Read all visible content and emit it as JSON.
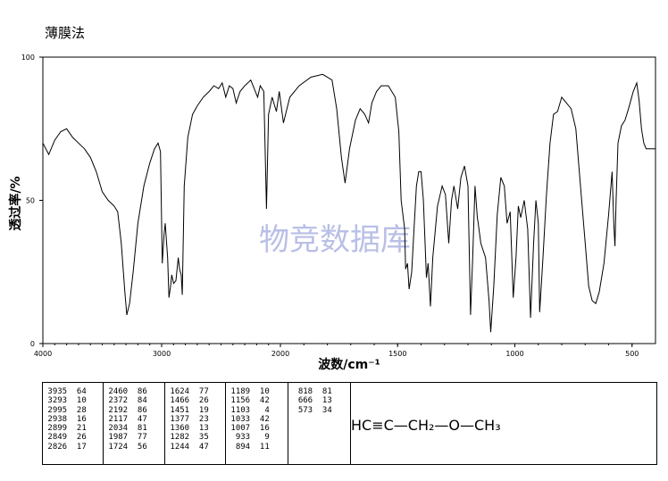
{
  "title": "薄膜法",
  "chart_data": {
    "type": "line",
    "xlabel": "波数/cm⁻¹",
    "ylabel": "透过率/%",
    "xlim": [
      4000,
      400
    ],
    "ylim": [
      0,
      100
    ],
    "x_ticks": [
      "4000",
      "3000",
      "2000",
      "1500",
      "1000",
      "500"
    ],
    "y_ticks": [
      "0",
      "50",
      "100"
    ],
    "watermark": "物竞数据库",
    "series": [
      {
        "points": [
          [
            4000,
            70
          ],
          [
            3950,
            66
          ],
          [
            3900,
            71
          ],
          [
            3850,
            74
          ],
          [
            3800,
            75
          ],
          [
            3750,
            72
          ],
          [
            3700,
            70
          ],
          [
            3650,
            68
          ],
          [
            3600,
            65
          ],
          [
            3550,
            60
          ],
          [
            3500,
            53
          ],
          [
            3450,
            50
          ],
          [
            3400,
            48
          ],
          [
            3370,
            46
          ],
          [
            3340,
            35
          ],
          [
            3310,
            18
          ],
          [
            3293,
            10
          ],
          [
            3270,
            14
          ],
          [
            3240,
            25
          ],
          [
            3200,
            42
          ],
          [
            3150,
            55
          ],
          [
            3100,
            63
          ],
          [
            3060,
            68
          ],
          [
            3030,
            70
          ],
          [
            3010,
            67
          ],
          [
            2995,
            28
          ],
          [
            2980,
            38
          ],
          [
            2970,
            42
          ],
          [
            2950,
            30
          ],
          [
            2938,
            16
          ],
          [
            2925,
            20
          ],
          [
            2915,
            24
          ],
          [
            2899,
            21
          ],
          [
            2880,
            22
          ],
          [
            2860,
            30
          ],
          [
            2849,
            26
          ],
          [
            2835,
            24
          ],
          [
            2826,
            17
          ],
          [
            2810,
            55
          ],
          [
            2780,
            72
          ],
          [
            2740,
            80
          ],
          [
            2700,
            83
          ],
          [
            2650,
            86
          ],
          [
            2600,
            88
          ],
          [
            2560,
            90
          ],
          [
            2520,
            89
          ],
          [
            2490,
            91
          ],
          [
            2460,
            86
          ],
          [
            2430,
            90
          ],
          [
            2400,
            89
          ],
          [
            2372,
            84
          ],
          [
            2340,
            88
          ],
          [
            2300,
            90
          ],
          [
            2250,
            92
          ],
          [
            2192,
            86
          ],
          [
            2170,
            90
          ],
          [
            2140,
            88
          ],
          [
            2117,
            47
          ],
          [
            2100,
            80
          ],
          [
            2070,
            86
          ],
          [
            2034,
            81
          ],
          [
            2010,
            88
          ],
          [
            1987,
            77
          ],
          [
            1960,
            86
          ],
          [
            1920,
            90
          ],
          [
            1870,
            93
          ],
          [
            1820,
            94
          ],
          [
            1780,
            92
          ],
          [
            1760,
            82
          ],
          [
            1740,
            65
          ],
          [
            1724,
            56
          ],
          [
            1705,
            68
          ],
          [
            1680,
            78
          ],
          [
            1660,
            82
          ],
          [
            1640,
            80
          ],
          [
            1624,
            77
          ],
          [
            1610,
            84
          ],
          [
            1590,
            88
          ],
          [
            1570,
            90
          ],
          [
            1540,
            90
          ],
          [
            1510,
            86
          ],
          [
            1495,
            74
          ],
          [
            1485,
            50
          ],
          [
            1470,
            40
          ],
          [
            1466,
            26
          ],
          [
            1458,
            28
          ],
          [
            1451,
            19
          ],
          [
            1440,
            25
          ],
          [
            1430,
            40
          ],
          [
            1420,
            55
          ],
          [
            1410,
            60
          ],
          [
            1400,
            60
          ],
          [
            1390,
            50
          ],
          [
            1377,
            23
          ],
          [
            1370,
            28
          ],
          [
            1360,
            13
          ],
          [
            1350,
            30
          ],
          [
            1330,
            48
          ],
          [
            1310,
            55
          ],
          [
            1296,
            52
          ],
          [
            1282,
            35
          ],
          [
            1270,
            50
          ],
          [
            1260,
            55
          ],
          [
            1244,
            47
          ],
          [
            1230,
            58
          ],
          [
            1215,
            62
          ],
          [
            1200,
            55
          ],
          [
            1189,
            10
          ],
          [
            1180,
            30
          ],
          [
            1170,
            55
          ],
          [
            1160,
            44
          ],
          [
            1156,
            42
          ],
          [
            1145,
            35
          ],
          [
            1125,
            30
          ],
          [
            1110,
            15
          ],
          [
            1103,
            4
          ],
          [
            1090,
            20
          ],
          [
            1075,
            45
          ],
          [
            1060,
            58
          ],
          [
            1045,
            55
          ],
          [
            1033,
            42
          ],
          [
            1020,
            46
          ],
          [
            1007,
            16
          ],
          [
            995,
            30
          ],
          [
            985,
            48
          ],
          [
            975,
            44
          ],
          [
            960,
            50
          ],
          [
            945,
            40
          ],
          [
            933,
            9
          ],
          [
            920,
            35
          ],
          [
            910,
            50
          ],
          [
            900,
            42
          ],
          [
            894,
            11
          ],
          [
            880,
            30
          ],
          [
            865,
            52
          ],
          [
            850,
            70
          ],
          [
            835,
            80
          ],
          [
            818,
            81
          ],
          [
            800,
            86
          ],
          [
            780,
            84
          ],
          [
            760,
            82
          ],
          [
            740,
            75
          ],
          [
            720,
            55
          ],
          [
            700,
            35
          ],
          [
            685,
            20
          ],
          [
            670,
            15
          ],
          [
            655,
            14
          ],
          [
            640,
            18
          ],
          [
            620,
            28
          ],
          [
            600,
            45
          ],
          [
            585,
            60
          ],
          [
            578,
            42
          ],
          [
            573,
            34
          ],
          [
            568,
            50
          ],
          [
            560,
            70
          ],
          [
            545,
            76
          ],
          [
            530,
            78
          ],
          [
            515,
            82
          ],
          [
            495,
            88
          ],
          [
            480,
            91
          ],
          [
            470,
            85
          ],
          [
            460,
            75
          ],
          [
            450,
            70
          ],
          [
            440,
            68
          ],
          [
            420,
            68
          ],
          [
            400,
            68
          ]
        ]
      }
    ],
    "peak_table": [
      [
        [
          "3935",
          "64"
        ],
        [
          "3293",
          "10"
        ],
        [
          "2995",
          "28"
        ],
        [
          "2938",
          "16"
        ],
        [
          "2899",
          "21"
        ],
        [
          "2849",
          "26"
        ],
        [
          "2826",
          "17"
        ]
      ],
      [
        [
          "2460",
          "86"
        ],
        [
          "2372",
          "84"
        ],
        [
          "2192",
          "86"
        ],
        [
          "2117",
          "47"
        ],
        [
          "2034",
          "81"
        ],
        [
          "1987",
          "77"
        ],
        [
          "1724",
          "56"
        ]
      ],
      [
        [
          "1624",
          "77"
        ],
        [
          "1466",
          "26"
        ],
        [
          "1451",
          "19"
        ],
        [
          "1377",
          "23"
        ],
        [
          "1360",
          "13"
        ],
        [
          "1282",
          "35"
        ],
        [
          "1244",
          "47"
        ]
      ],
      [
        [
          "1189",
          "10"
        ],
        [
          "1156",
          "42"
        ],
        [
          "1103",
          "4"
        ],
        [
          "1033",
          "42"
        ],
        [
          "1007",
          "16"
        ],
        [
          "933",
          "9"
        ],
        [
          "894",
          "11"
        ]
      ],
      [
        [
          "818",
          "81"
        ],
        [
          "666",
          "13"
        ],
        [
          "573",
          "34"
        ]
      ]
    ],
    "structure": "HC≡C—CH₂—O—CH₃"
  }
}
